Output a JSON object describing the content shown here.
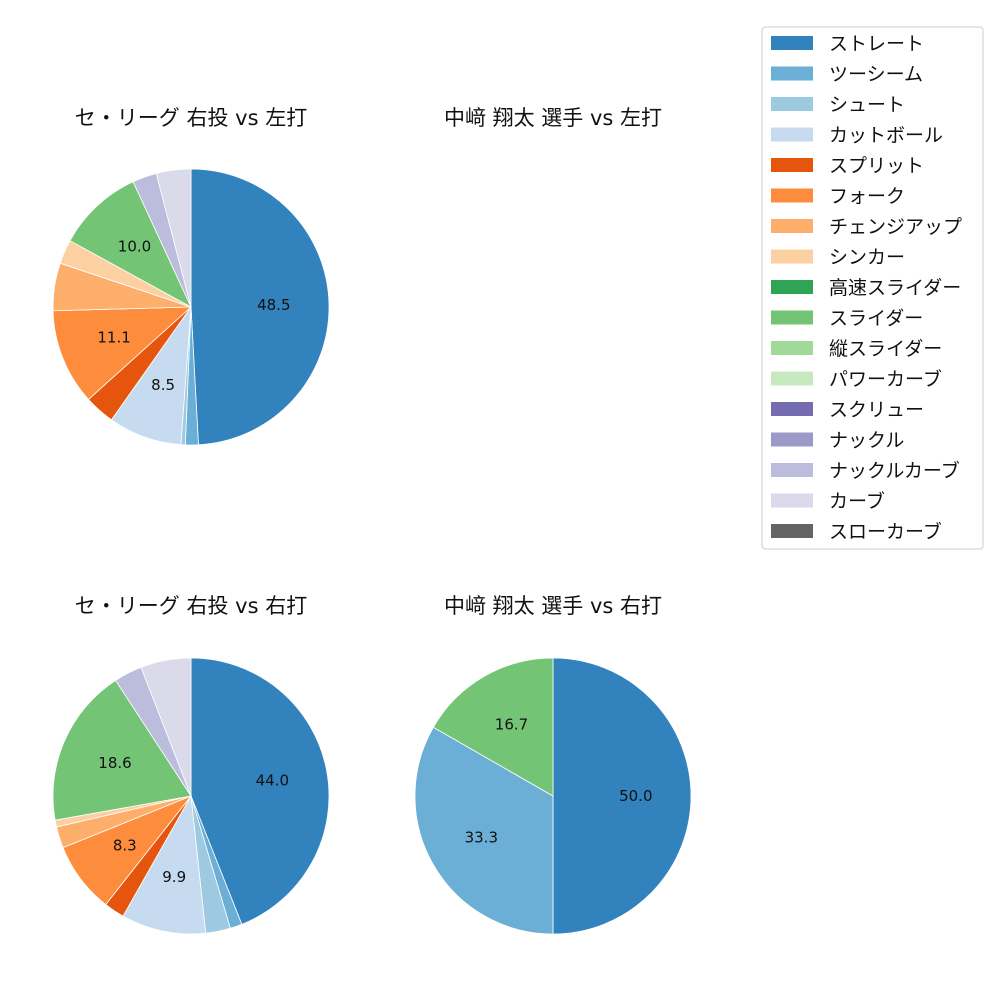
{
  "legend": {
    "items": [
      {
        "label": "ストレート",
        "color": "#3182bd"
      },
      {
        "label": "ツーシーム",
        "color": "#6baed6"
      },
      {
        "label": "シュート",
        "color": "#9ecae1"
      },
      {
        "label": "カットボール",
        "color": "#c6dbef"
      },
      {
        "label": "スプリット",
        "color": "#e6550d"
      },
      {
        "label": "フォーク",
        "color": "#fd8d3c"
      },
      {
        "label": "チェンジアップ",
        "color": "#fdae6b"
      },
      {
        "label": "シンカー",
        "color": "#fdd0a2"
      },
      {
        "label": "高速スライダー",
        "color": "#31a354"
      },
      {
        "label": "スライダー",
        "color": "#74c476"
      },
      {
        "label": "縦スライダー",
        "color": "#a1d99b"
      },
      {
        "label": "パワーカーブ",
        "color": "#c7e9c0"
      },
      {
        "label": "スクリュー",
        "color": "#756bb1"
      },
      {
        "label": "ナックル",
        "color": "#9e9ac8"
      },
      {
        "label": "ナックルカーブ",
        "color": "#bcbddc"
      },
      {
        "label": "カーブ",
        "color": "#dadaeb"
      },
      {
        "label": "スローカーブ",
        "color": "#636363"
      }
    ]
  },
  "chart_data": [
    {
      "type": "pie",
      "title": "セ・リーグ 右投 vs 左打",
      "slices": [
        {
          "label": "ストレート",
          "value": 48.5,
          "show_label": true
        },
        {
          "label": "ツーシーム",
          "value": 1.5,
          "show_label": false
        },
        {
          "label": "シュート",
          "value": 0.5,
          "show_label": false
        },
        {
          "label": "カットボール",
          "value": 8.5,
          "show_label": true
        },
        {
          "label": "スプリット",
          "value": 3.5,
          "show_label": false
        },
        {
          "label": "フォーク",
          "value": 11.1,
          "show_label": true
        },
        {
          "label": "チェンジアップ",
          "value": 5.5,
          "show_label": false
        },
        {
          "label": "シンカー",
          "value": 2.8,
          "show_label": false
        },
        {
          "label": "スライダー",
          "value": 10.0,
          "show_label": true
        },
        {
          "label": "ナックルカーブ",
          "value": 2.8,
          "show_label": false
        },
        {
          "label": "カーブ",
          "value": 4.0,
          "show_label": false
        }
      ]
    },
    {
      "type": "pie",
      "title": "中﨑 翔太 選手 vs 左打",
      "slices": []
    },
    {
      "type": "pie",
      "title": "セ・リーグ 右投 vs 右打",
      "slices": [
        {
          "label": "ストレート",
          "value": 44.0,
          "show_label": true
        },
        {
          "label": "ツーシーム",
          "value": 1.4,
          "show_label": false
        },
        {
          "label": "シュート",
          "value": 2.9,
          "show_label": false
        },
        {
          "label": "カットボール",
          "value": 9.9,
          "show_label": true
        },
        {
          "label": "スプリット",
          "value": 2.4,
          "show_label": false
        },
        {
          "label": "フォーク",
          "value": 8.3,
          "show_label": true
        },
        {
          "label": "チェンジアップ",
          "value": 2.5,
          "show_label": false
        },
        {
          "label": "シンカー",
          "value": 0.8,
          "show_label": false
        },
        {
          "label": "スライダー",
          "value": 18.6,
          "show_label": true
        },
        {
          "label": "ナックルカーブ",
          "value": 3.3,
          "show_label": false
        },
        {
          "label": "カーブ",
          "value": 5.9,
          "show_label": false
        }
      ]
    },
    {
      "type": "pie",
      "title": "中﨑 翔太 選手 vs 右打",
      "slices": [
        {
          "label": "ストレート",
          "value": 50.0,
          "show_label": true
        },
        {
          "label": "ツーシーム",
          "value": 33.3,
          "show_label": true
        },
        {
          "label": "スライダー",
          "value": 16.7,
          "show_label": true
        }
      ]
    }
  ]
}
